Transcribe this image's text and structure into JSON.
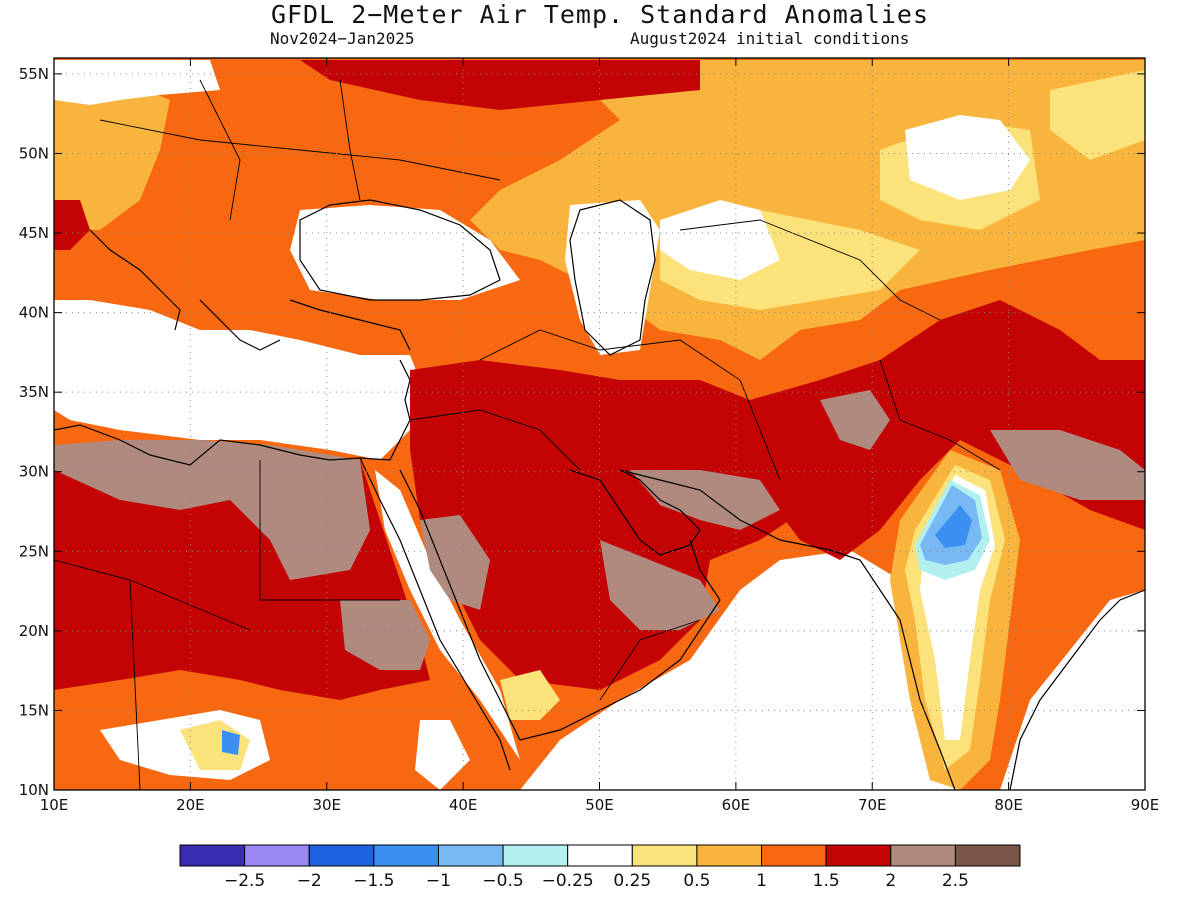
{
  "title": "GFDL 2−Meter Air Temp. Standard Anomalies",
  "subtitle_left": "Nov2024−Jan2025",
  "subtitle_right": "August2024 initial conditions",
  "map": {
    "lon_range": [
      10,
      90
    ],
    "lat_range": [
      10,
      56
    ],
    "lon_ticks": [
      "10E",
      "20E",
      "30E",
      "40E",
      "50E",
      "60E",
      "70E",
      "80E",
      "90E"
    ],
    "lat_ticks": [
      "10N",
      "15N",
      "20N",
      "25N",
      "30N",
      "35N",
      "40N",
      "45N",
      "50N",
      "55N"
    ]
  },
  "colorbar": {
    "colors": [
      "#3a2bb3",
      "#9b88f5",
      "#1f62e0",
      "#3b8ff0",
      "#78b9f5",
      "#b2f0f0",
      "#ffffff",
      "#fbe27a",
      "#f8b43c",
      "#f76810",
      "#c40404",
      "#b08a7f",
      "#7a5648"
    ],
    "labels": [
      "−2.5",
      "−2",
      "−1.5",
      "−1",
      "−0.5",
      "−0.25",
      "0.25",
      "0.5",
      "1",
      "1.5",
      "2",
      "2.5"
    ]
  }
}
